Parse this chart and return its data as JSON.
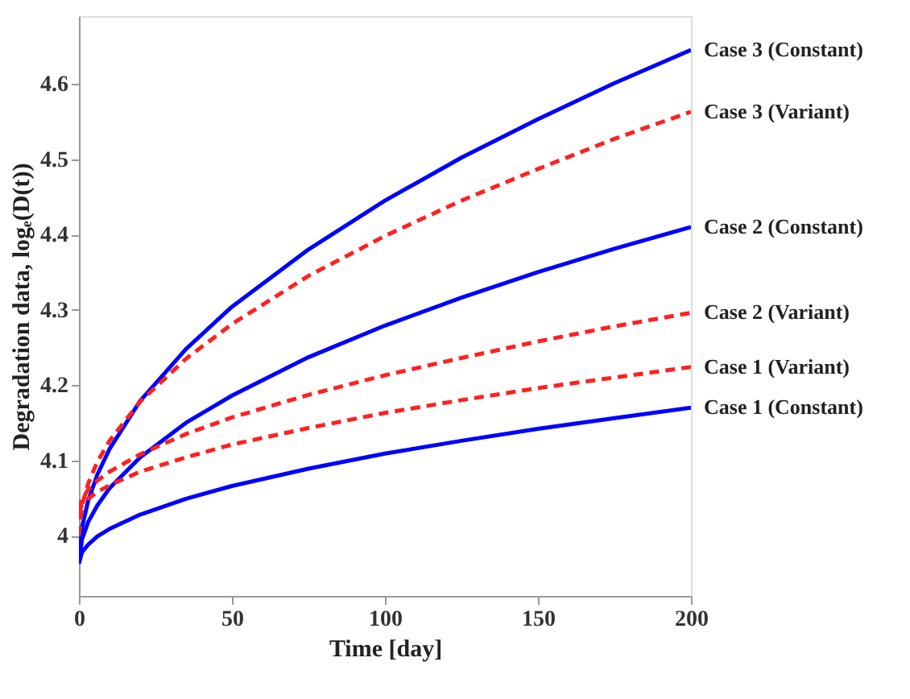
{
  "chart_data": {
    "type": "line",
    "xlabel": "Time [day]",
    "ylabel": "Degradation data, logₑ(D(t))",
    "x": [
      0,
      1,
      3,
      6,
      10,
      20,
      35,
      50,
      75,
      100,
      125,
      150,
      175,
      200
    ],
    "xlim": [
      0,
      200
    ],
    "xticks": [
      0,
      50,
      100,
      150,
      200
    ],
    "ylim": [
      3.92,
      4.69
    ],
    "yticks": [
      {
        "value": 4,
        "label": "4"
      },
      4.1,
      4.2,
      4.3,
      4.4,
      4.5,
      4.6
    ],
    "grid": false,
    "marker": "none",
    "series": [
      {
        "name": "Case 3 (Constant)",
        "color": "#0000ff",
        "line_style": "solid",
        "values": [
          3.963,
          4.011,
          4.046,
          4.081,
          4.115,
          4.179,
          4.248,
          4.304,
          4.38,
          4.445,
          4.502,
          4.553,
          4.601,
          4.645
        ]
      },
      {
        "name": "Case 3 (Variant)",
        "color": "#ff2020",
        "line_style": "dashed",
        "values": [
          4.0,
          4.04,
          4.069,
          4.098,
          4.126,
          4.178,
          4.235,
          4.281,
          4.345,
          4.398,
          4.445,
          4.487,
          4.527,
          4.563
        ]
      },
      {
        "name": "Case 2 (Constant)",
        "color": "#0000ff",
        "line_style": "solid",
        "values": [
          3.963,
          3.995,
          4.018,
          4.04,
          4.063,
          4.104,
          4.15,
          4.186,
          4.237,
          4.279,
          4.316,
          4.35,
          4.381,
          4.41
        ]
      },
      {
        "name": "Case 2 (Variant)",
        "color": "#ff2020",
        "line_style": "dashed",
        "values": [
          4.035,
          4.049,
          4.061,
          4.073,
          4.085,
          4.108,
          4.135,
          4.157,
          4.187,
          4.213,
          4.236,
          4.258,
          4.278,
          4.296
        ]
      },
      {
        "name": "Case 1 (Variant)",
        "color": "#ff2020",
        "line_style": "dashed",
        "values": [
          4.03,
          4.041,
          4.049,
          4.058,
          4.067,
          4.085,
          4.104,
          4.121,
          4.143,
          4.163,
          4.18,
          4.196,
          4.21,
          4.224
        ]
      },
      {
        "name": "Case 1 (Constant)",
        "color": "#0000ff",
        "line_style": "solid",
        "values": [
          3.963,
          3.978,
          3.988,
          3.999,
          4.009,
          4.028,
          4.049,
          4.066,
          4.089,
          4.109,
          4.126,
          4.142,
          4.156,
          4.17
        ]
      }
    ]
  }
}
